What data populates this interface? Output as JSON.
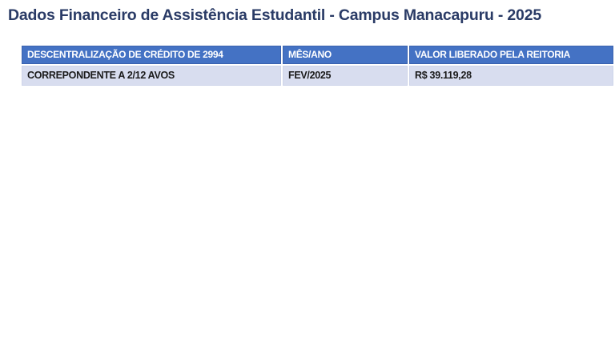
{
  "page": {
    "title": "Dados Financeiro de Assistência Estudantil - Campus Manacapuru - 2025"
  },
  "colors": {
    "title_text": "#2A3B66",
    "table_header_bg": "#4472C4",
    "table_header_text": "#FFFFFF",
    "table_row_bg": "#D8DDEF",
    "table_row_text": "#1B1B1B"
  },
  "table": {
    "headers": [
      "DESCENTRALIZAÇÃO DE CRÉDITO DE 2994",
      "MÊS/ANO",
      "VALOR LIBERADO PELA REITORIA"
    ],
    "rows": [
      [
        "CORREPONDENTE A 2/12 AVOS",
        "FEV/2025",
        "R$ 39.119,28"
      ]
    ]
  }
}
